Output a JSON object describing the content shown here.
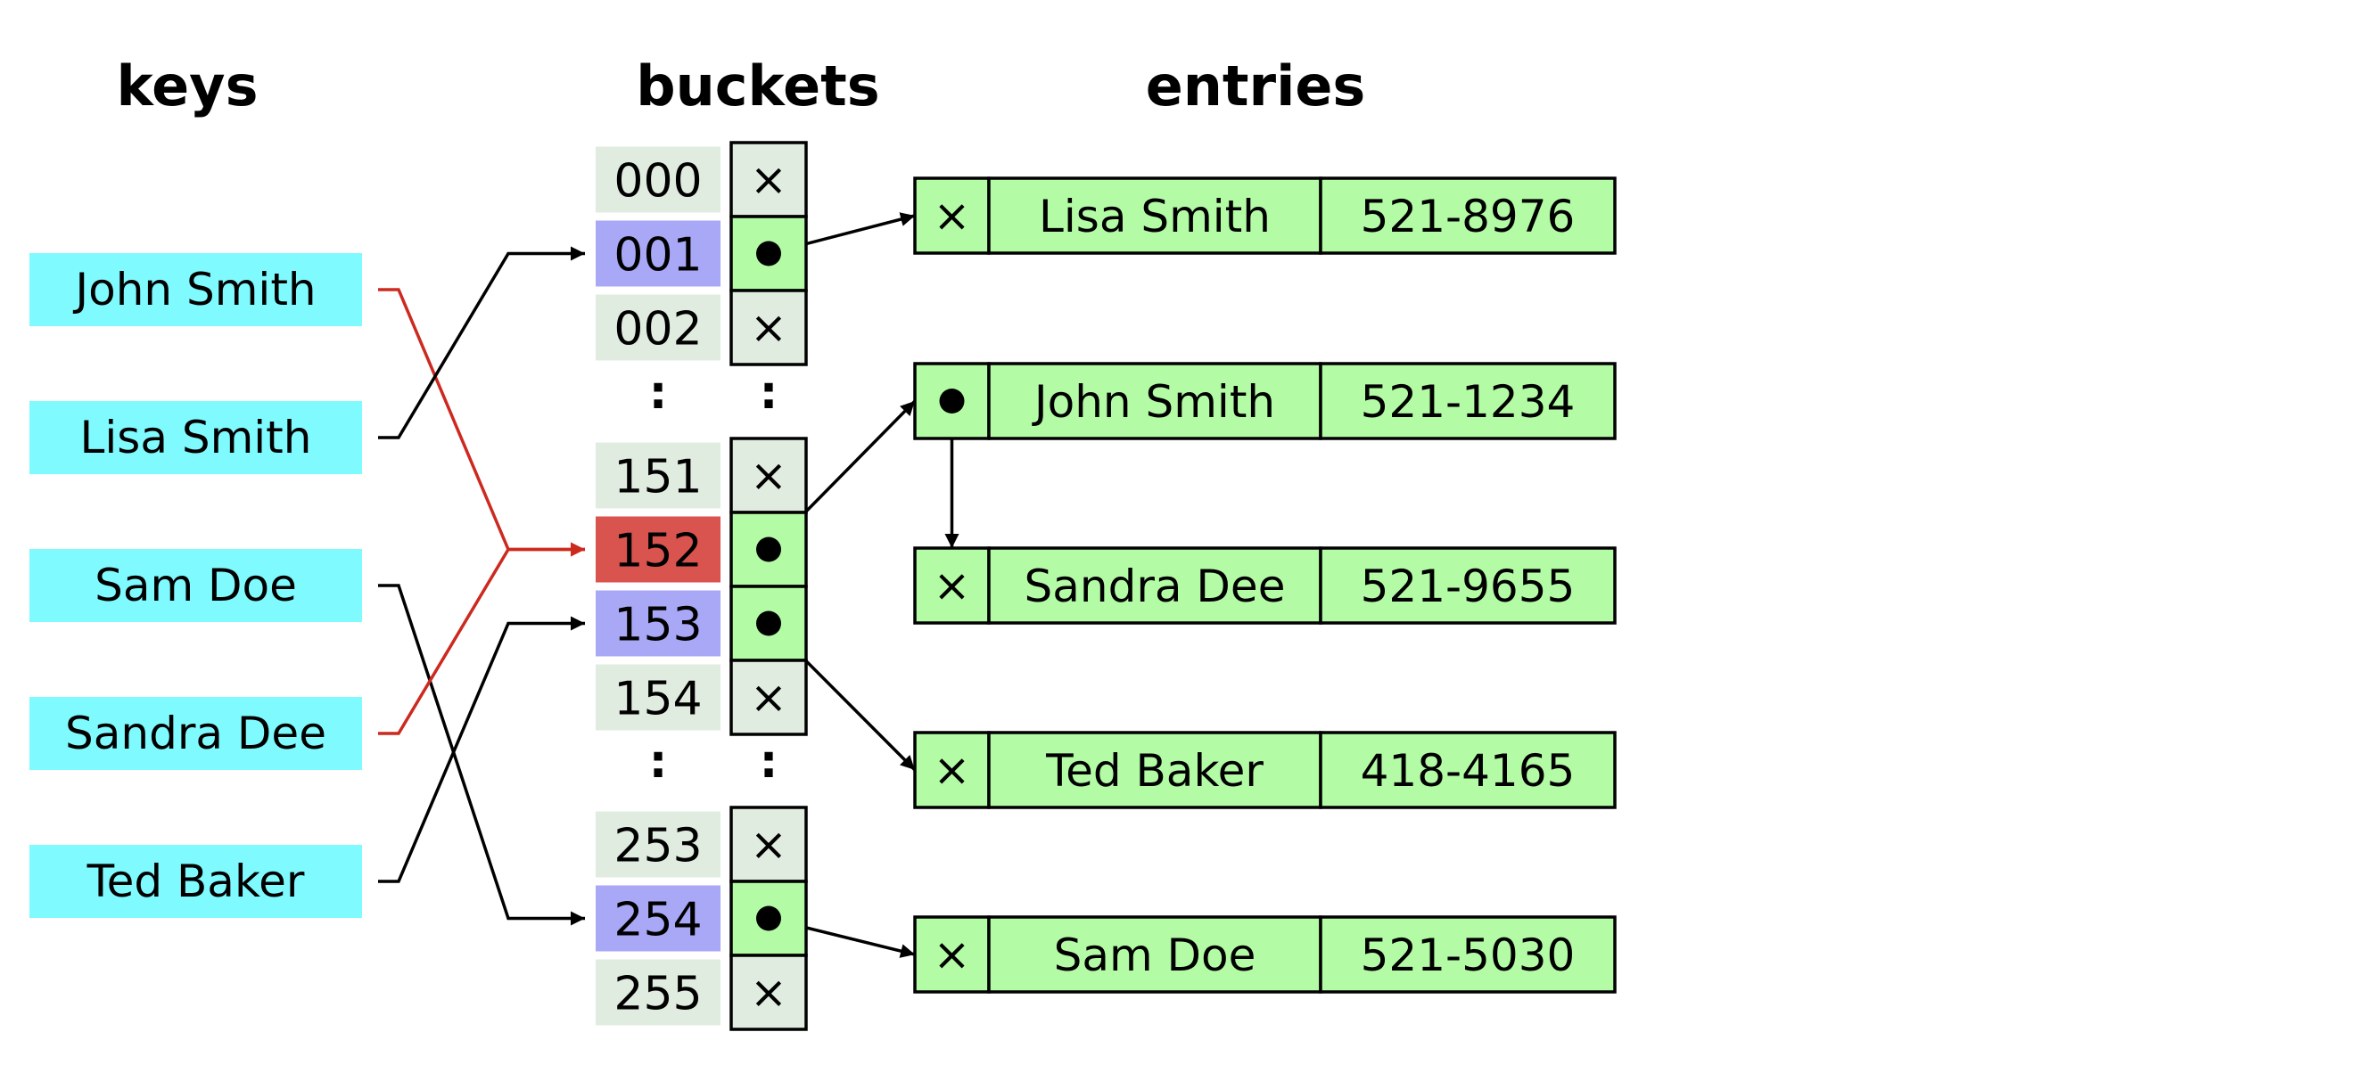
{
  "headings": {
    "keys": "keys",
    "buckets": "buckets",
    "entries": "entries"
  },
  "keys": [
    "John Smith",
    "Lisa Smith",
    "Sam Doe",
    "Sandra Dee",
    "Ted Baker"
  ],
  "buckets": {
    "groups": [
      [
        {
          "index": "000",
          "state": "empty",
          "ptr": false
        },
        {
          "index": "001",
          "state": "used",
          "ptr": true
        },
        {
          "index": "002",
          "state": "empty",
          "ptr": false
        }
      ],
      [
        {
          "index": "151",
          "state": "empty",
          "ptr": false
        },
        {
          "index": "152",
          "state": "collision",
          "ptr": true
        },
        {
          "index": "153",
          "state": "used",
          "ptr": true
        },
        {
          "index": "154",
          "state": "empty",
          "ptr": false
        }
      ],
      [
        {
          "index": "253",
          "state": "empty",
          "ptr": false
        },
        {
          "index": "254",
          "state": "used",
          "ptr": true
        },
        {
          "index": "255",
          "state": "empty",
          "ptr": false
        }
      ]
    ],
    "ellipsis": ":",
    "null_symbol": "×"
  },
  "entries": [
    {
      "name": "Lisa Smith",
      "phone": "521-8976",
      "next": false
    },
    {
      "name": "John Smith",
      "phone": "521-1234",
      "next": true
    },
    {
      "name": "Sandra Dee",
      "phone": "521-9655",
      "next": false
    },
    {
      "name": "Ted Baker",
      "phone": "418-4165",
      "next": false
    },
    {
      "name": "Sam Doe",
      "phone": "521-5030",
      "next": false
    }
  ],
  "hash_map": [
    {
      "key": "John Smith",
      "bucket": "152",
      "collision": true
    },
    {
      "key": "Lisa Smith",
      "bucket": "001",
      "collision": false
    },
    {
      "key": "Sam Doe",
      "bucket": "254",
      "collision": false
    },
    {
      "key": "Sandra Dee",
      "bucket": "152",
      "collision": true
    },
    {
      "key": "Ted Baker",
      "bucket": "153",
      "collision": false
    }
  ],
  "bucket_links": [
    {
      "bucket": "001",
      "entry": "Lisa Smith"
    },
    {
      "bucket": "152",
      "entry": "John Smith"
    },
    {
      "bucket": "153",
      "entry": "Ted Baker"
    },
    {
      "bucket": "254",
      "entry": "Sam Doe"
    }
  ],
  "chain_links": [
    {
      "from": "John Smith",
      "to": "Sandra Dee"
    }
  ],
  "colors": {
    "key_fill": "#7ffaff",
    "bucket_empty": "#e1ece1",
    "bucket_used": "#a8a8f7",
    "bucket_collision": "#d9534f",
    "pointer_used": "#b3fca5",
    "entry_fill": "#b3fca5",
    "wire": "#000000",
    "collision_wire": "#cc2a1f"
  }
}
